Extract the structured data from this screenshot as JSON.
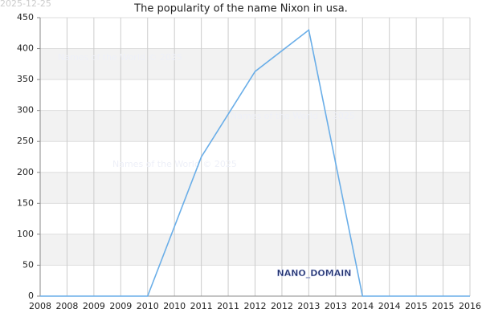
{
  "chart_data": {
    "type": "line",
    "title": "The popularity of the name Nixon in usa.",
    "date_stamp": "2025-12-25",
    "watermarks": [
      "Names of the World © 2025",
      "Names of the World © 2025",
      "Names of the World © 2025"
    ],
    "brand": "NANO_DOMAIN",
    "x": [
      2008,
      2009,
      2010,
      2011,
      2012,
      2013,
      2014,
      2015,
      2016
    ],
    "series": [
      {
        "name": "Nixon",
        "color": "#6aaee8",
        "values": [
          0,
          0,
          0,
          225,
          363,
          430,
          0,
          0,
          0
        ]
      }
    ],
    "xlim": [
      2008,
      2016
    ],
    "xticks": [
      2008,
      {
        "value": 2008.5,
        "label": "2008"
      },
      2009,
      {
        "value": 2009.5,
        "label": "2009"
      },
      2010,
      {
        "value": 2010.5,
        "label": "2010"
      },
      2011,
      {
        "value": 2011.5,
        "label": "2011"
      },
      2012,
      {
        "value": 2012.5,
        "label": "2012"
      },
      2013,
      {
        "value": 2013.5,
        "label": "2013"
      },
      2014,
      {
        "value": 2014.5,
        "label": "2014"
      },
      2015,
      {
        "value": 2015.5,
        "label": "2015"
      },
      2016
    ],
    "ylim": [
      0,
      450
    ],
    "yticks": [
      0,
      50,
      100,
      150,
      200,
      250,
      300,
      350,
      400,
      450
    ],
    "grid": true,
    "band_color": "#f2f2f2"
  }
}
